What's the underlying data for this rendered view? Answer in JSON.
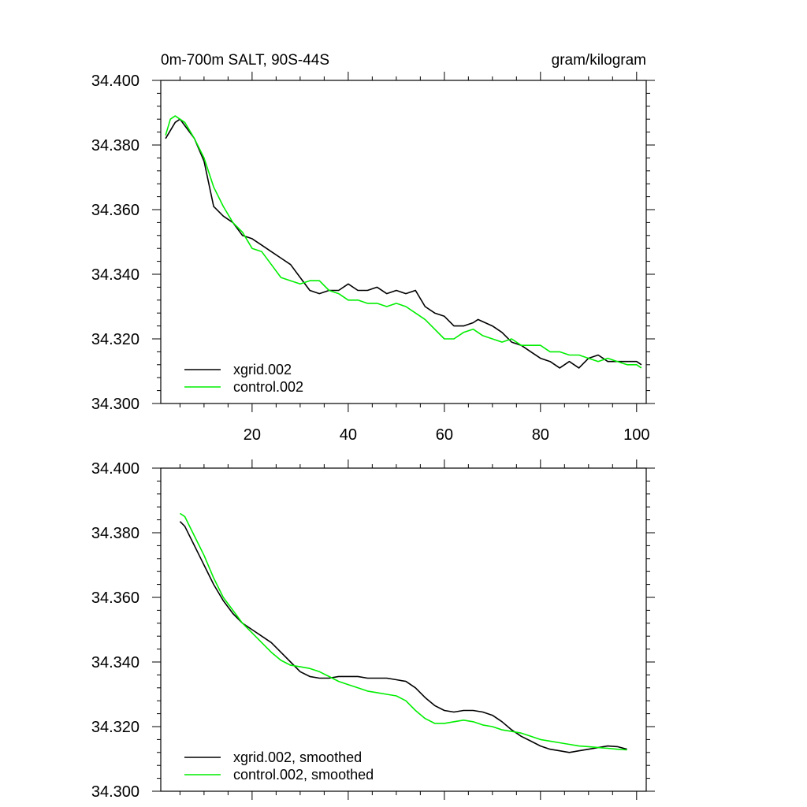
{
  "chart_data": [
    {
      "type": "line",
      "title": "0m-700m SALT, 90S-44S",
      "units": "gram/kilogram",
      "xlim": [
        1,
        102
      ],
      "ylim": [
        34.3,
        34.4
      ],
      "x_ticks": [
        20,
        40,
        60,
        80,
        100
      ],
      "y_ticks": [
        "34.300",
        "34.320",
        "34.340",
        "34.360",
        "34.380",
        "34.400"
      ],
      "grid": false,
      "legend_position": "bottom-left",
      "series": [
        {
          "name": "xgrid.002",
          "color": "#000000",
          "x": [
            2,
            4,
            5,
            6,
            8,
            10,
            12,
            14,
            16,
            18,
            20,
            22,
            24,
            26,
            28,
            30,
            32,
            34,
            36,
            38,
            40,
            42,
            44,
            46,
            48,
            50,
            52,
            54,
            56,
            58,
            60,
            62,
            64,
            66,
            67,
            70,
            72,
            74,
            76,
            78,
            80,
            82,
            84,
            86,
            88,
            90,
            92,
            94,
            96,
            98,
            100,
            101
          ],
          "y": [
            34.382,
            34.387,
            34.388,
            34.386,
            34.382,
            34.375,
            34.361,
            34.358,
            34.356,
            34.352,
            34.351,
            34.349,
            34.347,
            34.345,
            34.343,
            34.339,
            34.335,
            34.334,
            34.335,
            34.335,
            34.337,
            34.335,
            34.335,
            34.336,
            34.334,
            34.335,
            34.334,
            34.335,
            34.33,
            34.328,
            34.327,
            34.324,
            34.324,
            34.325,
            34.326,
            34.324,
            34.322,
            34.319,
            34.318,
            34.316,
            34.314,
            34.313,
            34.311,
            34.313,
            34.311,
            34.314,
            34.315,
            34.313,
            34.313,
            34.313,
            34.313,
            34.312
          ]
        },
        {
          "name": "control.002",
          "color": "#00ee00",
          "x": [
            2,
            3,
            4,
            5,
            6,
            8,
            10,
            12,
            14,
            16,
            18,
            20,
            22,
            24,
            26,
            28,
            30,
            32,
            34,
            36,
            38,
            40,
            42,
            44,
            46,
            48,
            50,
            52,
            54,
            56,
            58,
            60,
            62,
            64,
            66,
            68,
            70,
            72,
            74,
            76,
            78,
            80,
            82,
            84,
            86,
            88,
            90,
            92,
            94,
            96,
            98,
            100,
            101
          ],
          "y": [
            34.383,
            34.388,
            34.389,
            34.388,
            34.387,
            34.382,
            34.376,
            34.367,
            34.361,
            34.356,
            34.353,
            34.348,
            34.347,
            34.343,
            34.339,
            34.338,
            34.337,
            34.338,
            34.338,
            34.335,
            34.334,
            34.332,
            34.332,
            34.331,
            34.331,
            34.33,
            34.331,
            34.33,
            34.328,
            34.326,
            34.323,
            34.32,
            34.32,
            34.322,
            34.323,
            34.321,
            34.32,
            34.319,
            34.32,
            34.318,
            34.318,
            34.318,
            34.316,
            34.316,
            34.315,
            34.315,
            34.314,
            34.313,
            34.314,
            34.313,
            34.312,
            34.312,
            34.311
          ]
        }
      ]
    },
    {
      "type": "line",
      "xlim": [
        1,
        102
      ],
      "ylim": [
        34.3,
        34.4
      ],
      "y_ticks": [
        "34.300",
        "34.320",
        "34.340",
        "34.360",
        "34.380",
        "34.400"
      ],
      "grid": false,
      "legend_position": "bottom-left",
      "series": [
        {
          "name": "xgrid.002, smoothed",
          "color": "#000000",
          "x": [
            5,
            6,
            8,
            10,
            12,
            14,
            16,
            18,
            20,
            22,
            24,
            26,
            28,
            30,
            32,
            34,
            36,
            38,
            40,
            42,
            44,
            46,
            48,
            50,
            52,
            54,
            56,
            58,
            60,
            62,
            64,
            66,
            68,
            70,
            72,
            74,
            76,
            78,
            80,
            82,
            84,
            86,
            88,
            90,
            92,
            94,
            96,
            98
          ],
          "y": [
            34.3835,
            34.382,
            34.376,
            34.37,
            34.364,
            34.359,
            34.355,
            34.352,
            34.35,
            34.348,
            34.346,
            34.343,
            34.34,
            34.337,
            34.3355,
            34.335,
            34.335,
            34.3355,
            34.3355,
            34.3355,
            34.335,
            34.335,
            34.335,
            34.3345,
            34.334,
            34.332,
            34.329,
            34.3265,
            34.325,
            34.3245,
            34.325,
            34.325,
            34.3245,
            34.3235,
            34.3215,
            34.319,
            34.317,
            34.3155,
            34.314,
            34.313,
            34.3125,
            34.312,
            34.3125,
            34.313,
            34.3135,
            34.314,
            34.3138,
            34.313
          ]
        },
        {
          "name": "control.002, smoothed",
          "color": "#00ee00",
          "x": [
            5,
            6,
            8,
            10,
            12,
            14,
            16,
            18,
            20,
            22,
            24,
            26,
            28,
            30,
            32,
            34,
            36,
            38,
            40,
            42,
            44,
            46,
            48,
            50,
            52,
            54,
            56,
            58,
            60,
            62,
            64,
            66,
            68,
            70,
            72,
            74,
            76,
            78,
            80,
            82,
            84,
            86,
            88,
            90,
            92,
            94,
            96,
            98
          ],
          "y": [
            34.386,
            34.385,
            34.379,
            34.373,
            34.366,
            34.36,
            34.356,
            34.352,
            34.349,
            34.346,
            34.343,
            34.3405,
            34.339,
            34.3385,
            34.338,
            34.337,
            34.3355,
            34.334,
            34.333,
            34.332,
            34.331,
            34.3305,
            34.33,
            34.3295,
            34.328,
            34.325,
            34.3225,
            34.321,
            34.321,
            34.3215,
            34.322,
            34.3215,
            34.3205,
            34.32,
            34.319,
            34.3185,
            34.318,
            34.317,
            34.316,
            34.3155,
            34.315,
            34.3145,
            34.314,
            34.3138,
            34.3135,
            34.3133,
            34.313,
            34.3128
          ]
        }
      ]
    }
  ]
}
